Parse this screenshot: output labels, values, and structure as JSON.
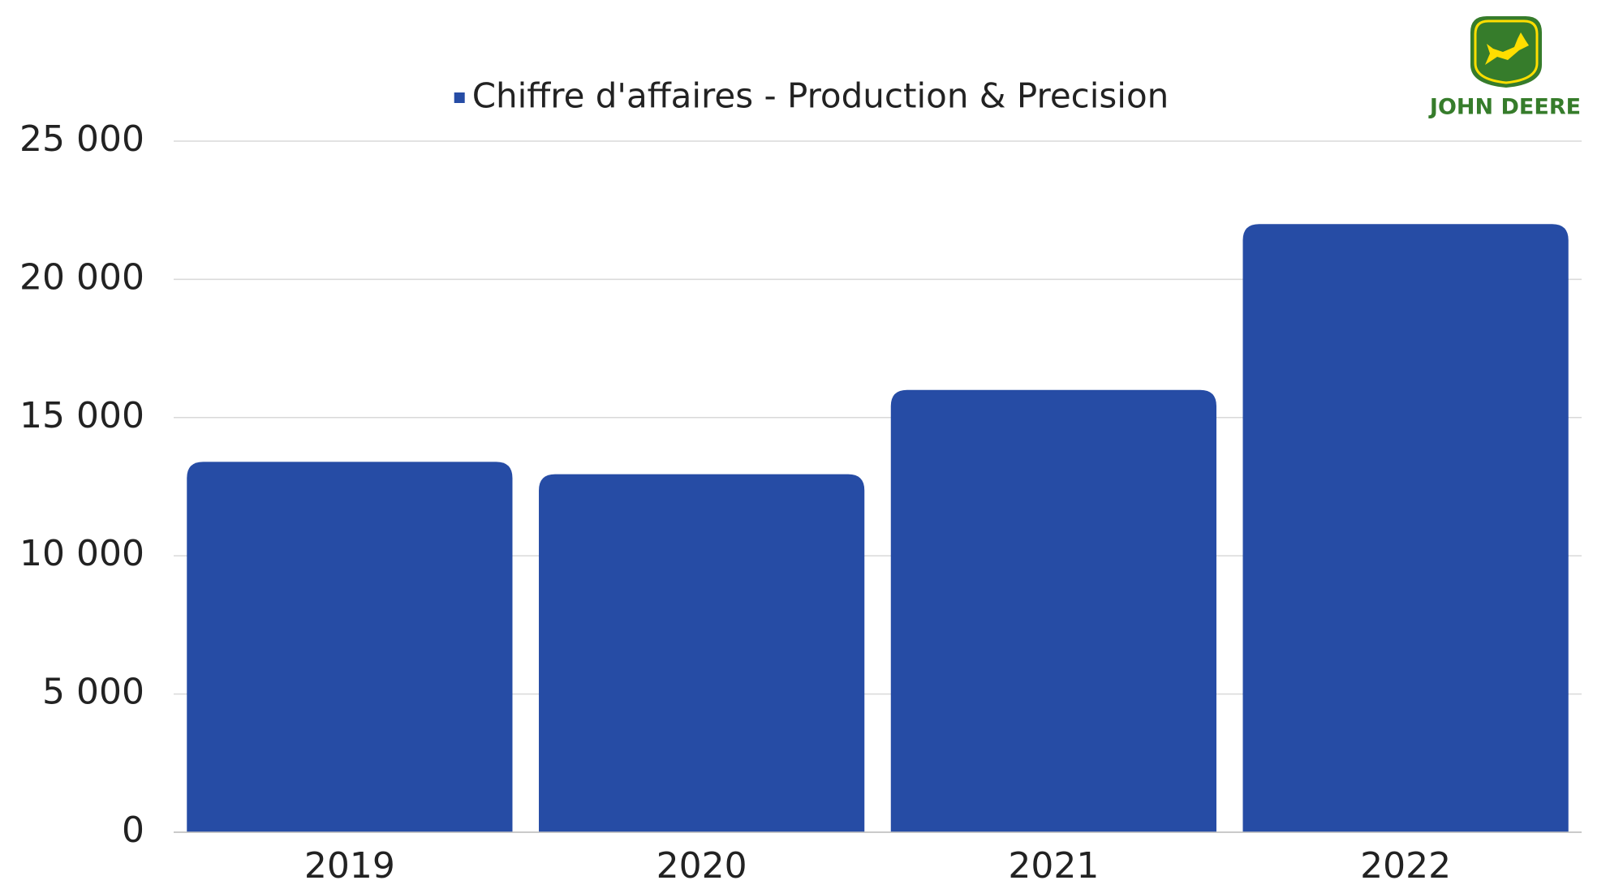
{
  "chart_data": {
    "type": "bar",
    "logo_text": "JOHN DEERE",
    "categories": [
      "2019",
      "2020",
      "2021",
      "2022"
    ],
    "series": [
      {
        "name": "Chiffre d'affaires - Production & Precision",
        "color": "#264ca5",
        "values": [
          13400,
          12950,
          16000,
          22000
        ]
      }
    ],
    "ylim": [
      0,
      25000
    ],
    "yticks": [
      0,
      {
        "value": 5000,
        "label": "5 000"
      },
      {
        "value": 10000,
        "label": "10 000"
      },
      {
        "value": 15000,
        "label": "15 000"
      },
      {
        "value": 20000,
        "label": "20 000"
      },
      {
        "value": 25000,
        "label": "25 000"
      }
    ],
    "grid": true
  }
}
